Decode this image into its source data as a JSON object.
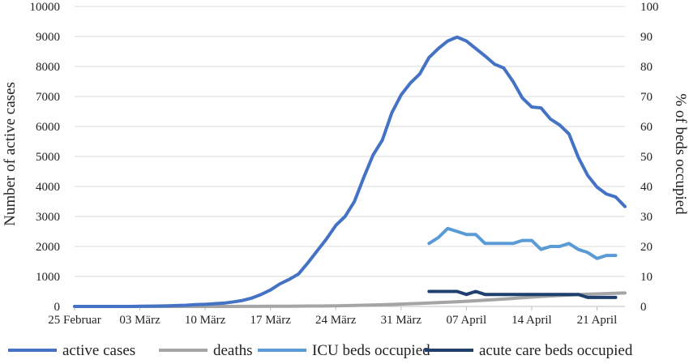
{
  "chart_data": {
    "type": "line",
    "title": "",
    "xlabel": "",
    "ylabel": "Number of active cases",
    "y2label": "% of beds occupied",
    "ylim": [
      0,
      10000
    ],
    "y2lim": [
      0,
      100
    ],
    "y_ticks": [
      0,
      1000,
      2000,
      3000,
      4000,
      5000,
      6000,
      7000,
      8000,
      9000,
      10000
    ],
    "y_tick_labels": [
      "0",
      "1000",
      "2000",
      "3000",
      "4000",
      "5000",
      "6000",
      "7000",
      "8000",
      "9000",
      "10000"
    ],
    "y2_ticks": [
      0,
      10,
      20,
      30,
      40,
      50,
      60,
      70,
      80,
      90,
      100
    ],
    "y2_tick_labels": [
      "0",
      "10",
      "20",
      "30",
      "40",
      "50",
      "60",
      "70",
      "80",
      "90",
      "100"
    ],
    "x_tick_labels": [
      "25 Februar",
      "03 März",
      "10 März",
      "17 März",
      "24 März",
      "31 März",
      "07 April",
      "14 April",
      "21 April"
    ],
    "grid": true,
    "legend_position": "bottom",
    "series": [
      {
        "name": "active cases",
        "axis": "left",
        "color": "#4472c4",
        "values": [
          0,
          0,
          0,
          0,
          0,
          0,
          0,
          5,
          10,
          15,
          20,
          30,
          40,
          60,
          70,
          90,
          110,
          150,
          200,
          280,
          400,
          550,
          750,
          900,
          1080,
          1450,
          1850,
          2250,
          2700,
          3000,
          3500,
          4300,
          5050,
          5550,
          6450,
          7050,
          7450,
          7750,
          8300,
          8600,
          8850,
          8980,
          8850,
          8600,
          8350,
          8080,
          7950,
          7500,
          6950,
          6650,
          6620,
          6250,
          6050,
          5750,
          4970,
          4370,
          3980,
          3750,
          3650,
          3330
        ]
      },
      {
        "name": "deaths",
        "axis": "left",
        "color": "#a5a5a5",
        "values": [
          0,
          0,
          0,
          0,
          0,
          0,
          0,
          0,
          0,
          0,
          0,
          0,
          0,
          0,
          0,
          0,
          1,
          1,
          2,
          3,
          4,
          5,
          6,
          8,
          10,
          12,
          15,
          18,
          22,
          27,
          33,
          40,
          48,
          57,
          67,
          78,
          90,
          102,
          115,
          128,
          142,
          157,
          173,
          190,
          208,
          227,
          247,
          268,
          290,
          312,
          330,
          348,
          365,
          380,
          395,
          408,
          420,
          430,
          440,
          450
        ]
      },
      {
        "name": "ICU beds occupied",
        "axis": "right",
        "color": "#5b9bd5",
        "x_start": 38,
        "values": [
          21,
          23,
          26,
          25,
          24,
          24,
          21,
          21,
          21,
          21,
          22,
          22,
          19,
          20,
          20,
          21,
          19,
          18,
          16,
          17,
          17
        ]
      },
      {
        "name": "acute care beds occupied",
        "axis": "right",
        "color": "#1f3f6e",
        "x_start": 38,
        "values": [
          5,
          5,
          5,
          5,
          4,
          5,
          4,
          4,
          4,
          4,
          4,
          4,
          4,
          4,
          4,
          4,
          4,
          3,
          3,
          3,
          3
        ]
      }
    ]
  }
}
